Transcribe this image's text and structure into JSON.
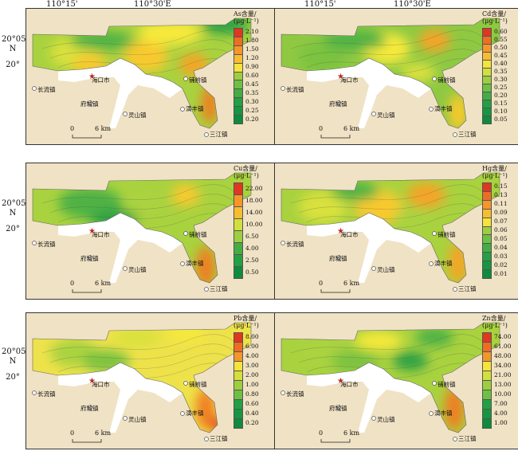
{
  "axis_top": {
    "lon_labels": [
      "110°15'",
      "110°30'E"
    ]
  },
  "axis_left": {
    "lat_labels": [
      "20°05'",
      "N",
      "20°"
    ]
  },
  "places": {
    "haikou": "海口市",
    "changliu": "长流镇",
    "fucheng": "府城镇",
    "lingshan": "灵山镇",
    "yanfeng": "演丰镇",
    "puqian": "铺前镇",
    "sanjiang": "三江镇"
  },
  "scale": {
    "zero": "0",
    "six": "6 km"
  },
  "colors": {
    "land": "#f0e2c4",
    "sea": "#ffffff",
    "ramp_low": "#1a9a43",
    "ramp_mid": "#f6e93a",
    "ramp_high": "#e0321e"
  },
  "panels": [
    {
      "id": "as",
      "legend_title": "As含量/",
      "legend_unit": "(μg·L⁻¹)",
      "ticks": [
        "2.10",
        "1.80",
        "1.50",
        "1.20",
        "0.90",
        "0.60",
        "0.45",
        "0.35",
        "0.30",
        "0.25",
        "0.20"
      ]
    },
    {
      "id": "cd",
      "legend_title": "Cd含量/",
      "legend_unit": "(μg·L⁻¹)",
      "ticks": [
        "0.60",
        "0.55",
        "0.50",
        "0.45",
        "0.40",
        "0.35",
        "0.30",
        "0.25",
        "0.20",
        "0.15",
        "0.10",
        "0.05"
      ]
    },
    {
      "id": "cu",
      "legend_title": "Cu含量/",
      "legend_unit": "(μg·L⁻¹)",
      "ticks": [
        "22.00",
        "18.00",
        "14.00",
        "10.00",
        "6.50",
        "4.00",
        "2.50",
        "0.50"
      ]
    },
    {
      "id": "hg",
      "legend_title": "Hg含量/",
      "legend_unit": "(μg·L⁻¹)",
      "ticks": [
        "0.15",
        "0.13",
        "0.11",
        "0.09",
        "0.07",
        "0.06",
        "0.05",
        "0.04",
        "0.03",
        "0.02",
        "0.01"
      ]
    },
    {
      "id": "pb",
      "legend_title": "Pb含量/",
      "legend_unit": "(μg·L⁻¹)",
      "ticks": [
        "8.00",
        "6.00",
        "4.00",
        "3.00",
        "2.00",
        "1.00",
        "0.80",
        "0.60",
        "0.40",
        "0.20"
      ]
    },
    {
      "id": "zn",
      "legend_title": "Zn含量/",
      "legend_unit": "(μg·L⁻¹)",
      "ticks": [
        "74.00",
        "61.00",
        "48.00",
        "34.00",
        "21.00",
        "13.00",
        "10.00",
        "7.00",
        "4.00",
        "1.00"
      ]
    }
  ]
}
